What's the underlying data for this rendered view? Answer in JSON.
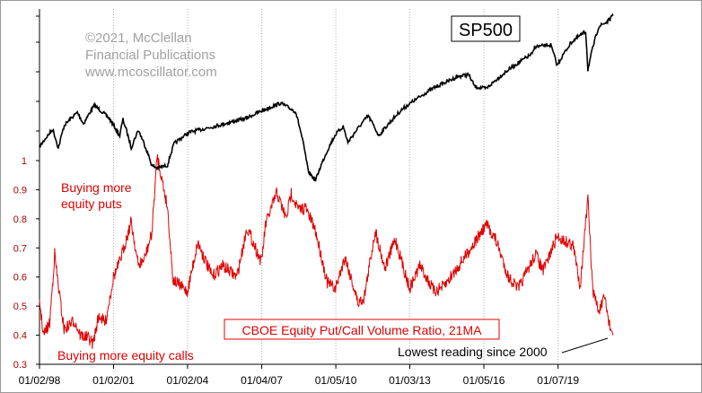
{
  "credit": {
    "line1": "©2021, McClellan",
    "line2": "Financial Publications",
    "line3": "www.mcoscillator.com"
  },
  "chart_data": {
    "type": "line",
    "title": "",
    "x_start": "1998-01-02",
    "x_end": "2021-04-01",
    "xtick_labels": [
      "01/02/98",
      "01/02/01",
      "01/02/04",
      "01/04/07",
      "01/05/10",
      "01/03/13",
      "01/05/16",
      "01/07/19"
    ],
    "xtick_dates": [
      "1998-01-02",
      "2001-01-02",
      "2004-01-02",
      "2007-01-04",
      "2010-01-05",
      "2013-01-03",
      "2016-01-05",
      "2019-01-07"
    ],
    "ylim": [
      0.3,
      1.0
    ],
    "yticks": [
      0.3,
      0.4,
      0.5,
      0.6,
      0.7,
      0.8,
      0.9,
      1.0
    ],
    "ytick_labels": [
      "0.3",
      "0.4",
      "0.5",
      "0.6",
      "0.7",
      "0.8",
      "0.9",
      "1"
    ],
    "grid": {
      "vertical": true,
      "horizontal": false
    },
    "series": [
      {
        "name": "SP500",
        "color": "#000000",
        "scale": "log",
        "points": [
          [
            "1998-01-02",
            975
          ],
          [
            "1998-07-17",
            1180
          ],
          [
            "1998-10-08",
            960
          ],
          [
            "1999-01-04",
            1230
          ],
          [
            "1999-07-16",
            1415
          ],
          [
            "1999-10-15",
            1250
          ],
          [
            "2000-03-24",
            1527
          ],
          [
            "2000-10-18",
            1340
          ],
          [
            "2001-04-04",
            1100
          ],
          [
            "2001-05-21",
            1310
          ],
          [
            "2001-09-21",
            965
          ],
          [
            "2002-01-04",
            1170
          ],
          [
            "2002-07-23",
            797
          ],
          [
            "2002-10-09",
            777
          ],
          [
            "2003-03-11",
            800
          ],
          [
            "2003-06-18",
            1010
          ],
          [
            "2004-01-20",
            1140
          ],
          [
            "2005-03-07",
            1225
          ],
          [
            "2006-05-05",
            1325
          ],
          [
            "2007-02-20",
            1460
          ],
          [
            "2007-10-09",
            1565
          ],
          [
            "2008-05-19",
            1426
          ],
          [
            "2008-11-20",
            752
          ],
          [
            "2009-03-09",
            677
          ],
          [
            "2009-12-31",
            1115
          ],
          [
            "2010-04-23",
            1217
          ],
          [
            "2010-07-02",
            1022
          ],
          [
            "2011-04-29",
            1364
          ],
          [
            "2011-10-03",
            1099
          ],
          [
            "2012-09-14",
            1465
          ],
          [
            "2013-12-31",
            1848
          ],
          [
            "2014-12-29",
            2090
          ],
          [
            "2015-05-21",
            2131
          ],
          [
            "2015-08-25",
            1868
          ],
          [
            "2016-02-11",
            1829
          ],
          [
            "2016-12-30",
            2239
          ],
          [
            "2017-12-29",
            2674
          ],
          [
            "2018-01-26",
            2873
          ],
          [
            "2018-09-20",
            2931
          ],
          [
            "2018-12-24",
            2351
          ],
          [
            "2019-07-26",
            3026
          ],
          [
            "2020-02-19",
            3386
          ],
          [
            "2020-03-23",
            2237
          ],
          [
            "2020-09-02",
            3580
          ],
          [
            "2020-12-31",
            3756
          ],
          [
            "2021-04-01",
            4020
          ]
        ]
      },
      {
        "name": "CBOE Equity Put/Call Volume Ratio, 21MA",
        "color": "#e00000",
        "points": [
          [
            "1998-01-02",
            0.52
          ],
          [
            "1998-03-01",
            0.4
          ],
          [
            "1998-06-01",
            0.44
          ],
          [
            "1998-08-15",
            0.68
          ],
          [
            "1998-10-01",
            0.58
          ],
          [
            "1999-01-01",
            0.42
          ],
          [
            "1999-06-01",
            0.45
          ],
          [
            "1999-09-01",
            0.4
          ],
          [
            "2000-01-01",
            0.39
          ],
          [
            "2000-03-01",
            0.37
          ],
          [
            "2000-06-01",
            0.47
          ],
          [
            "2000-09-01",
            0.44
          ],
          [
            "2001-01-01",
            0.6
          ],
          [
            "2001-04-01",
            0.65
          ],
          [
            "2001-09-21",
            0.79
          ],
          [
            "2002-01-01",
            0.64
          ],
          [
            "2002-04-01",
            0.66
          ],
          [
            "2002-07-23",
            0.75
          ],
          [
            "2002-10-09",
            1.02
          ],
          [
            "2003-03-11",
            0.84
          ],
          [
            "2003-06-01",
            0.59
          ],
          [
            "2004-01-01",
            0.55
          ],
          [
            "2004-06-01",
            0.72
          ],
          [
            "2005-01-01",
            0.6
          ],
          [
            "2005-06-01",
            0.64
          ],
          [
            "2006-01-01",
            0.6
          ],
          [
            "2006-06-01",
            0.77
          ],
          [
            "2007-01-01",
            0.65
          ],
          [
            "2007-03-01",
            0.78
          ],
          [
            "2007-08-15",
            0.89
          ],
          [
            "2008-01-01",
            0.8
          ],
          [
            "2008-03-15",
            0.89
          ],
          [
            "2008-07-01",
            0.83
          ],
          [
            "2008-10-10",
            0.84
          ],
          [
            "2009-03-09",
            0.76
          ],
          [
            "2009-09-01",
            0.58
          ],
          [
            "2010-01-01",
            0.56
          ],
          [
            "2010-05-20",
            0.67
          ],
          [
            "2010-12-01",
            0.51
          ],
          [
            "2011-03-01",
            0.53
          ],
          [
            "2011-08-10",
            0.76
          ],
          [
            "2012-01-01",
            0.63
          ],
          [
            "2012-06-01",
            0.73
          ],
          [
            "2013-01-01",
            0.56
          ],
          [
            "2013-06-01",
            0.64
          ],
          [
            "2014-01-01",
            0.55
          ],
          [
            "2014-06-01",
            0.57
          ],
          [
            "2015-01-01",
            0.64
          ],
          [
            "2015-08-25",
            0.72
          ],
          [
            "2016-02-11",
            0.78
          ],
          [
            "2016-06-27",
            0.73
          ],
          [
            "2017-01-01",
            0.6
          ],
          [
            "2017-06-01",
            0.56
          ],
          [
            "2018-02-09",
            0.68
          ],
          [
            "2018-06-01",
            0.62
          ],
          [
            "2018-12-24",
            0.74
          ],
          [
            "2019-05-15",
            0.72
          ],
          [
            "2019-08-15",
            0.71
          ],
          [
            "2019-12-01",
            0.57
          ],
          [
            "2020-03-23",
            0.87
          ],
          [
            "2020-06-01",
            0.56
          ],
          [
            "2020-09-01",
            0.48
          ],
          [
            "2020-12-01",
            0.53
          ],
          [
            "2021-02-01",
            0.44
          ],
          [
            "2021-04-01",
            0.4
          ]
        ]
      }
    ],
    "legend": {
      "sp500_label": "SP500",
      "putcall_label": "CBOE Equity Put/Call Volume Ratio, 21MA"
    },
    "annotations": {
      "puts_line1": "Buying more",
      "puts_line2": "equity puts",
      "calls": "Buying more equity calls",
      "lowest": "Lowest reading since 2000"
    }
  }
}
